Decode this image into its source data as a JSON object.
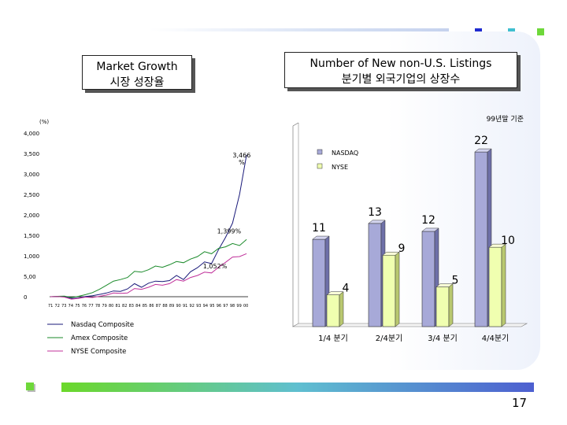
{
  "slide": {
    "page_number": "17",
    "colors": {
      "top_bar": "#c5d2ee",
      "bottom_bar_start": "#6bd82a",
      "bottom_bar_end": "#4d5fd0"
    }
  },
  "left_title": {
    "line1": "Market Growth",
    "line2": "시장 성장율"
  },
  "right_title": {
    "line1": "Number of New non-U.S. Listings",
    "line2": "분기별 외국기업의 상장수"
  },
  "chart_data": [
    {
      "type": "line",
      "ylabel": "(%)",
      "y_ticks": [
        "4,000",
        "3,500",
        "3,000",
        "2,500",
        "2,000",
        "1,500",
        "1,000",
        "5,00",
        "0"
      ],
      "ylim": [
        0,
        4000
      ],
      "x_ticks": [
        "71",
        "72",
        "73",
        "74",
        "75",
        "76",
        "77",
        "78",
        "79",
        "80",
        "81",
        "82",
        "83",
        "84",
        "85",
        "86",
        "87",
        "88",
        "89",
        "90",
        "91",
        "92",
        "93",
        "94",
        "95",
        "96",
        "97",
        "98",
        "99",
        "00"
      ],
      "series": [
        {
          "name": "Nasdaq Composite",
          "color": "#1a1a7a",
          "x": [
            71,
            72,
            73,
            74,
            75,
            76,
            77,
            78,
            79,
            80,
            81,
            82,
            83,
            84,
            85,
            86,
            87,
            88,
            89,
            90,
            91,
            92,
            93,
            94,
            95,
            96,
            97,
            98,
            99
          ],
          "y": [
            0,
            5,
            10,
            -40,
            -30,
            5,
            25,
            55,
            90,
            140,
            130,
            190,
            320,
            230,
            330,
            380,
            370,
            395,
            520,
            420,
            610,
            710,
            850,
            810,
            1150,
            1450,
            1800,
            2500,
            3466
          ]
        },
        {
          "name": "Amex Composite",
          "color": "#1a8a2a",
          "x": [
            71,
            72,
            73,
            74,
            75,
            76,
            77,
            78,
            79,
            80,
            81,
            82,
            83,
            84,
            85,
            86,
            87,
            88,
            89,
            90,
            91,
            92,
            93,
            94,
            95,
            96,
            97,
            98,
            99
          ],
          "y": [
            0,
            10,
            15,
            -20,
            10,
            50,
            100,
            180,
            280,
            380,
            420,
            470,
            620,
            600,
            660,
            750,
            720,
            780,
            860,
            830,
            920,
            980,
            1100,
            1050,
            1180,
            1220,
            1300,
            1250,
            1399
          ]
        },
        {
          "name": "NYSE Composite",
          "color": "#c0309a",
          "x": [
            71,
            72,
            73,
            74,
            75,
            76,
            77,
            78,
            79,
            80,
            81,
            82,
            83,
            84,
            85,
            86,
            87,
            88,
            89,
            90,
            91,
            92,
            93,
            94,
            95,
            96,
            97,
            98,
            99
          ],
          "y": [
            0,
            5,
            -10,
            -60,
            -40,
            -10,
            -20,
            10,
            40,
            90,
            80,
            90,
            200,
            180,
            230,
            300,
            280,
            320,
            420,
            380,
            470,
            520,
            600,
            580,
            720,
            840,
            970,
            980,
            1052
          ]
        }
      ],
      "annotations": [
        {
          "text": "3,466",
          "text2": "%",
          "x": 98.3,
          "y": 3400
        },
        {
          "text": "1,399%",
          "x": 96.5,
          "y": 1550
        },
        {
          "text": "1,052%",
          "x": 94.5,
          "y": 690
        }
      ]
    },
    {
      "type": "bar",
      "note": "99년말 기준",
      "categories": [
        "1/4 분기",
        "2/4분기",
        "3/4 분기",
        "4/4분기"
      ],
      "series": [
        {
          "name": "NASDAQ",
          "color": "#a7a9d8",
          "values": [
            11,
            13,
            12,
            22
          ]
        },
        {
          "name": "NYSE",
          "color": "#f0ffb0",
          "values": [
            4,
            9,
            5,
            10
          ]
        }
      ],
      "ylim": [
        0,
        23
      ]
    }
  ]
}
